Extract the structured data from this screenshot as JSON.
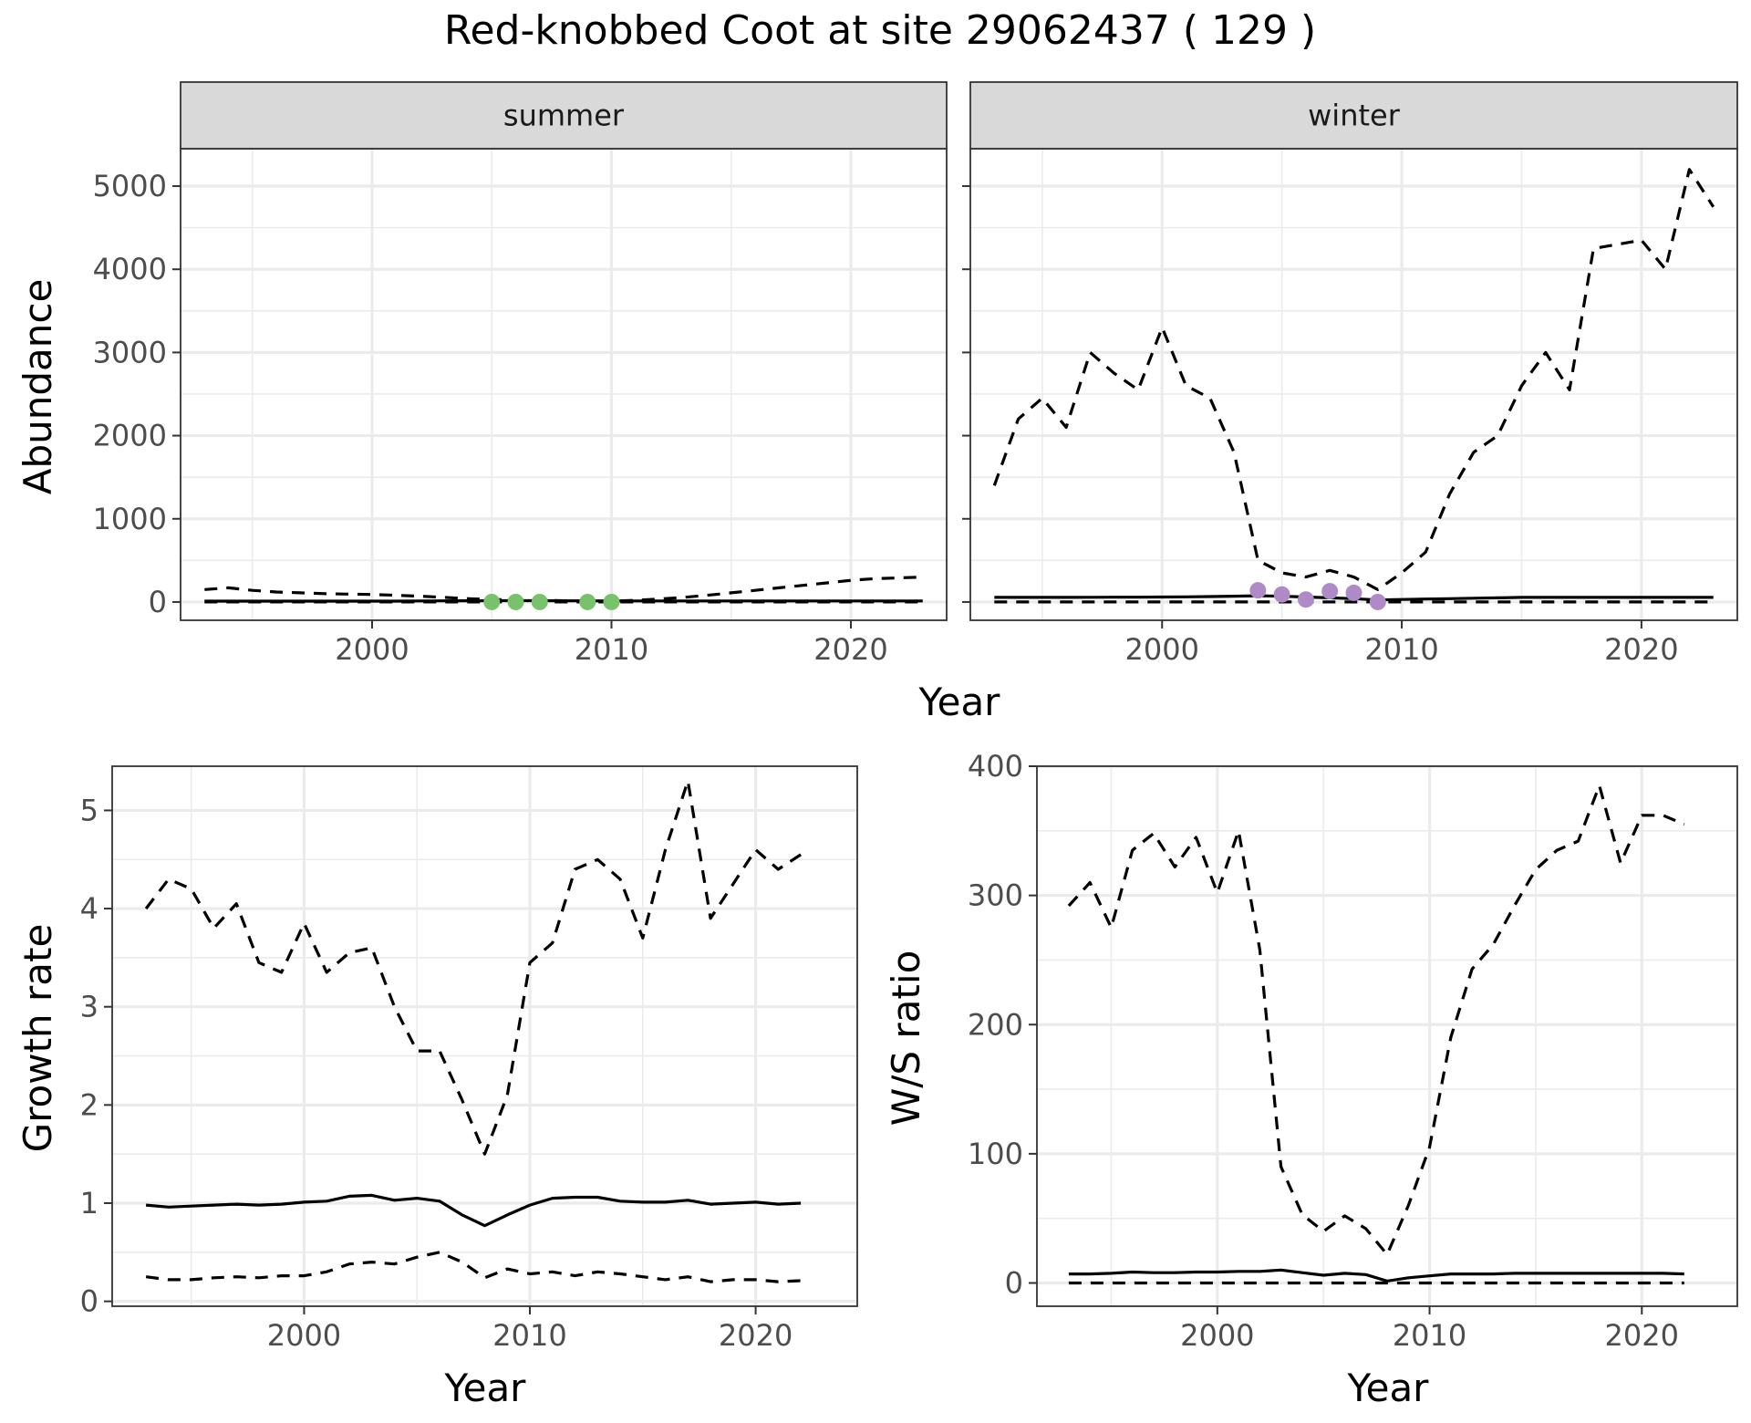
{
  "title": "Red-knobbed Coot at site 29062437 ( 129 )",
  "colors": {
    "summer_points": "#77c26a",
    "winter_points": "#ae8ac6",
    "strip_fill": "#d9d9d9"
  },
  "chart_data": [
    {
      "type": "line",
      "facet": "summer",
      "xlabel": "Year",
      "ylabel": "Abundance",
      "xlim": [
        1992,
        2024
      ],
      "ylim": [
        -220,
        5450
      ],
      "x_ticks": [
        2000,
        2010,
        2020
      ],
      "y_ticks": [
        0,
        1000,
        2000,
        3000,
        4000,
        5000
      ],
      "series": [
        {
          "style": "solid",
          "x": [
            1993,
            1994,
            1995,
            1996,
            1997,
            1998,
            1999,
            2000,
            2001,
            2002,
            2003,
            2004,
            2005,
            2006,
            2007,
            2008,
            2009,
            2010,
            2011,
            2012,
            2013,
            2014,
            2015,
            2016,
            2017,
            2018,
            2019,
            2020,
            2021,
            2022,
            2023
          ],
          "values": [
            10,
            10,
            10,
            10,
            10,
            10,
            10,
            10,
            10,
            12,
            14,
            15,
            16,
            16,
            16,
            15,
            14,
            12,
            12,
            12,
            12,
            12,
            12,
            12,
            12,
            12,
            12,
            12,
            12,
            12,
            12
          ]
        },
        {
          "style": "dashed",
          "x": [
            1993,
            1994,
            1995,
            1996,
            1997,
            1998,
            1999,
            2000,
            2001,
            2002,
            2003,
            2004,
            2005,
            2006,
            2007,
            2008,
            2009,
            2010,
            2011,
            2012,
            2013,
            2014,
            2015,
            2016,
            2017,
            2018,
            2019,
            2020,
            2021,
            2022,
            2023
          ],
          "values": [
            150,
            170,
            140,
            120,
            110,
            100,
            95,
            90,
            80,
            70,
            55,
            40,
            30,
            25,
            20,
            15,
            10,
            10,
            20,
            35,
            55,
            80,
            110,
            140,
            170,
            200,
            230,
            260,
            280,
            290,
            300
          ]
        },
        {
          "style": "dashed",
          "x": [
            1993,
            2023
          ],
          "values": [
            0,
            0
          ]
        },
        {
          "style": "points",
          "x": [
            2005,
            2006,
            2007,
            2009,
            2010
          ],
          "values": [
            0,
            0,
            0,
            0,
            0
          ]
        }
      ]
    },
    {
      "type": "line",
      "facet": "winter",
      "xlabel": "Year",
      "ylabel": "Abundance",
      "xlim": [
        1992,
        2024
      ],
      "ylim": [
        -220,
        5450
      ],
      "x_ticks": [
        2000,
        2010,
        2020
      ],
      "y_ticks": [
        0,
        1000,
        2000,
        3000,
        4000,
        5000
      ],
      "series": [
        {
          "style": "solid",
          "x": [
            1993,
            1994,
            1995,
            1996,
            1997,
            1998,
            1999,
            2000,
            2001,
            2002,
            2003,
            2004,
            2005,
            2006,
            2007,
            2008,
            2009,
            2010,
            2011,
            2012,
            2013,
            2014,
            2015,
            2016,
            2017,
            2018,
            2019,
            2020,
            2021,
            2022,
            2023
          ],
          "values": [
            55,
            55,
            55,
            55,
            56,
            57,
            58,
            60,
            62,
            65,
            70,
            75,
            70,
            60,
            50,
            40,
            25,
            30,
            35,
            40,
            45,
            50,
            55,
            55,
            55,
            55,
            55,
            55,
            55,
            55,
            55
          ]
        },
        {
          "style": "dashed",
          "x": [
            1993,
            1994,
            1995,
            1996,
            1997,
            1998,
            1999,
            2000,
            2001,
            2002,
            2003,
            2004,
            2005,
            2006,
            2007,
            2008,
            2009,
            2010,
            2011,
            2012,
            2013,
            2014,
            2015,
            2016,
            2017,
            2018,
            2019,
            2020,
            2021,
            2022,
            2023
          ],
          "values": [
            1400,
            2200,
            2450,
            2100,
            3000,
            2750,
            2550,
            3300,
            2600,
            2450,
            1800,
            500,
            350,
            300,
            380,
            300,
            150,
            350,
            600,
            1300,
            1800,
            2000,
            2600,
            3000,
            2550,
            4250,
            4300,
            4350,
            4000,
            5200,
            4750
          ]
        },
        {
          "style": "dashed",
          "x": [
            1993,
            2023
          ],
          "values": [
            0,
            0
          ]
        },
        {
          "style": "points",
          "x": [
            2004,
            2005,
            2006,
            2007,
            2008,
            2009
          ],
          "values": [
            140,
            90,
            30,
            130,
            110,
            0
          ]
        }
      ]
    },
    {
      "type": "line",
      "xlabel": "Year",
      "ylabel": "Growth rate",
      "xlim": [
        1991.5,
        2024.5
      ],
      "ylim": [
        -0.05,
        5.45
      ],
      "x_ticks": [
        2000,
        2010,
        2020
      ],
      "y_ticks": [
        0,
        1,
        2,
        3,
        4,
        5
      ],
      "series": [
        {
          "style": "solid",
          "x": [
            1993,
            1994,
            1995,
            1996,
            1997,
            1998,
            1999,
            2000,
            2001,
            2002,
            2003,
            2004,
            2005,
            2006,
            2007,
            2008,
            2009,
            2010,
            2011,
            2012,
            2013,
            2014,
            2015,
            2016,
            2017,
            2018,
            2019,
            2020,
            2021,
            2022
          ],
          "values": [
            0.98,
            0.96,
            0.97,
            0.98,
            0.99,
            0.98,
            0.99,
            1.01,
            1.02,
            1.07,
            1.08,
            1.03,
            1.05,
            1.02,
            0.88,
            0.77,
            0.88,
            0.98,
            1.05,
            1.06,
            1.06,
            1.02,
            1.01,
            1.01,
            1.03,
            0.99,
            1.0,
            1.01,
            0.99,
            1.0
          ]
        },
        {
          "style": "dashed",
          "x": [
            1993,
            1994,
            1995,
            1996,
            1997,
            1998,
            1999,
            2000,
            2001,
            2002,
            2003,
            2004,
            2005,
            2006,
            2007,
            2008,
            2009,
            2010,
            2011,
            2012,
            2013,
            2014,
            2015,
            2016,
            2017,
            2018,
            2019,
            2020,
            2021,
            2022
          ],
          "values": [
            4.0,
            4.3,
            4.2,
            3.8,
            4.05,
            3.45,
            3.35,
            3.85,
            3.35,
            3.55,
            3.6,
            3.0,
            2.55,
            2.55,
            2.05,
            1.5,
            2.1,
            3.45,
            3.65,
            4.4,
            4.5,
            4.3,
            3.7,
            4.6,
            5.3,
            3.9,
            4.25,
            4.6,
            4.4,
            4.55
          ]
        },
        {
          "style": "dashed",
          "x": [
            1993,
            1994,
            1995,
            1996,
            1997,
            1998,
            1999,
            2000,
            2001,
            2002,
            2003,
            2004,
            2005,
            2006,
            2007,
            2008,
            2009,
            2010,
            2011,
            2012,
            2013,
            2014,
            2015,
            2016,
            2017,
            2018,
            2019,
            2020,
            2021,
            2022
          ],
          "values": [
            0.25,
            0.22,
            0.22,
            0.24,
            0.25,
            0.24,
            0.26,
            0.26,
            0.3,
            0.38,
            0.4,
            0.38,
            0.45,
            0.5,
            0.4,
            0.24,
            0.33,
            0.28,
            0.3,
            0.26,
            0.3,
            0.28,
            0.25,
            0.22,
            0.25,
            0.2,
            0.22,
            0.22,
            0.2,
            0.21
          ]
        }
      ]
    },
    {
      "type": "line",
      "xlabel": "Year",
      "ylabel": "W/S ratio",
      "xlim": [
        1991.5,
        2024.5
      ],
      "ylim": [
        -18,
        400
      ],
      "x_ticks": [
        2000,
        2010,
        2020
      ],
      "y_ticks": [
        0,
        100,
        200,
        300,
        400
      ],
      "series": [
        {
          "style": "solid",
          "x": [
            1993,
            1994,
            1995,
            1996,
            1997,
            1998,
            1999,
            2000,
            2001,
            2002,
            2003,
            2004,
            2005,
            2006,
            2007,
            2008,
            2009,
            2010,
            2011,
            2012,
            2013,
            2014,
            2015,
            2016,
            2017,
            2018,
            2019,
            2020,
            2021,
            2022
          ],
          "values": [
            7,
            7,
            7.5,
            8.5,
            8,
            8,
            8.5,
            8.5,
            9,
            9,
            10,
            8,
            6,
            7.5,
            6.5,
            1.5,
            4,
            5.5,
            7,
            7,
            7,
            7.5,
            7.5,
            7.5,
            7.5,
            7.5,
            7.5,
            7.5,
            7.5,
            7
          ]
        },
        {
          "style": "dashed",
          "x": [
            1993,
            1994,
            1995,
            1996,
            1997,
            1998,
            1999,
            2000,
            2001,
            2002,
            2003,
            2004,
            2005,
            2006,
            2007,
            2008,
            2009,
            2010,
            2011,
            2012,
            2013,
            2014,
            2015,
            2016,
            2017,
            2018,
            2019,
            2020,
            2021,
            2022
          ],
          "values": [
            292,
            310,
            275,
            335,
            348,
            322,
            345,
            302,
            350,
            258,
            90,
            53,
            40,
            52,
            42,
            22,
            60,
            105,
            190,
            243,
            262,
            292,
            320,
            335,
            342,
            385,
            325,
            362,
            362,
            355
          ]
        },
        {
          "style": "dashed",
          "x": [
            1993,
            2022
          ],
          "values": [
            0,
            0
          ]
        }
      ]
    }
  ]
}
